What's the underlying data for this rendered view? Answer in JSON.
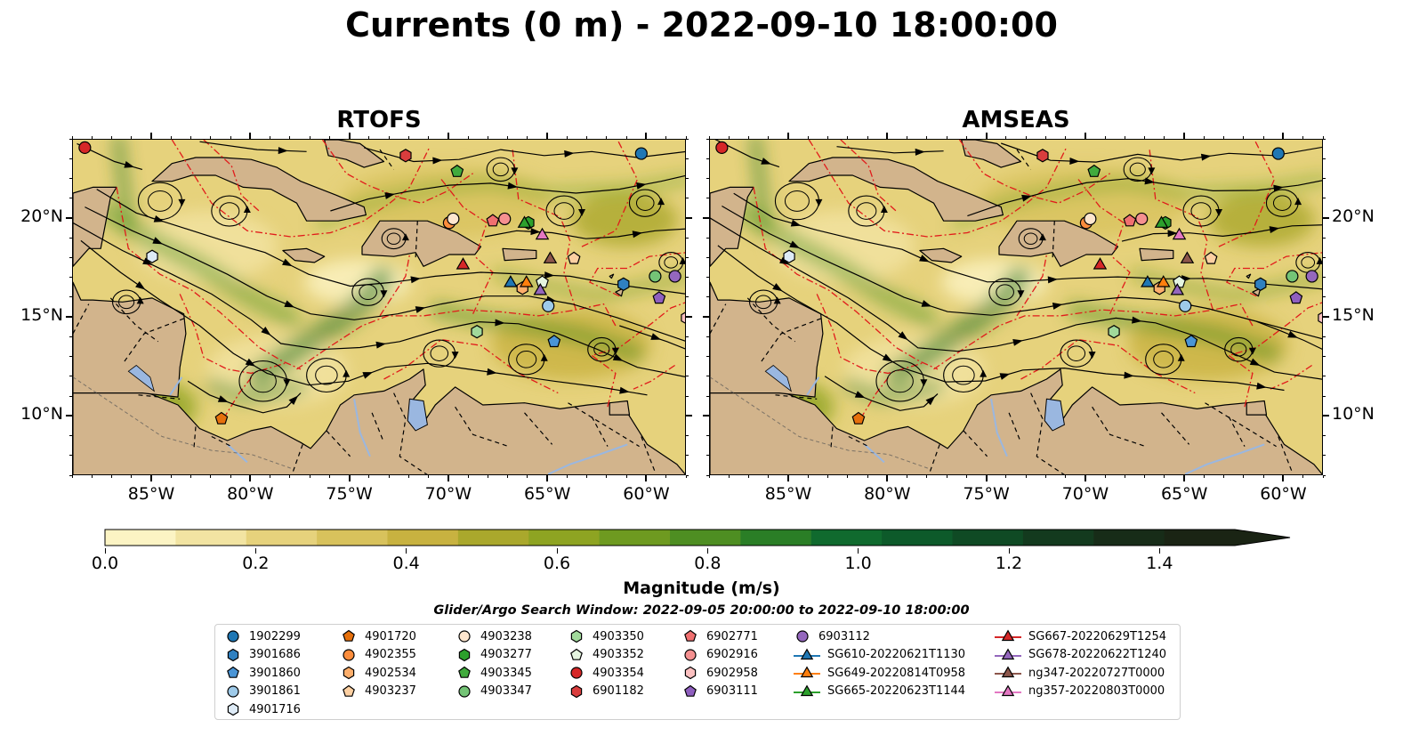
{
  "title": "Currents (0 m) - 2022-09-10 18:00:00",
  "panels": [
    {
      "title": "RTOFS"
    },
    {
      "title": "AMSEAS"
    }
  ],
  "map": {
    "lon_range": [
      -89,
      -58
    ],
    "lat_range": [
      7,
      24
    ],
    "lon_ticks": [
      {
        "lon": -85,
        "label": "85°W"
      },
      {
        "lon": -80,
        "label": "80°W"
      },
      {
        "lon": -75,
        "label": "75°W"
      },
      {
        "lon": -70,
        "label": "70°W"
      },
      {
        "lon": -65,
        "label": "65°W"
      },
      {
        "lon": -60,
        "label": "60°W"
      }
    ],
    "lat_ticks": [
      {
        "lat": 20,
        "label": "20°N"
      },
      {
        "lat": 15,
        "label": "15°N"
      },
      {
        "lat": 10,
        "label": "10°N"
      }
    ],
    "land_color": "#d2b48c",
    "lake_color": "#9ab7e0",
    "boundary_color": "#e11b1b"
  },
  "colorbar": {
    "label": "Magnitude (m/s)",
    "min": 0.0,
    "max": 1.5,
    "extend": "max",
    "ticks": [
      "0.0",
      "0.2",
      "0.4",
      "0.6",
      "0.8",
      "1.0",
      "1.2",
      "1.4"
    ],
    "tick_values": [
      0,
      0.2,
      0.4,
      0.6,
      0.8,
      1.0,
      1.2,
      1.4
    ],
    "colors": [
      "#fcf4c4",
      "#f2e4a2",
      "#e6d27c",
      "#d8c25c",
      "#c8b240",
      "#aaa82c",
      "#8ea422",
      "#6e9a20",
      "#4e8e22",
      "#2a7e26",
      "#106a2e",
      "#0d5a2a",
      "#0f4a24",
      "#133a1e",
      "#172c18",
      "#1a2414"
    ]
  },
  "search_window": "Glider/Argo Search Window: 2022-09-05 20:00:00 to 2022-09-10 18:00:00",
  "legend": {
    "columns": [
      [
        {
          "label": "1902299",
          "marker": "circle",
          "color": "#1f77b4"
        },
        {
          "label": "3901686",
          "marker": "hexagon",
          "color": "#2f80c0"
        },
        {
          "label": "3901860",
          "marker": "pentagon",
          "color": "#4a95d6"
        },
        {
          "label": "3901861",
          "marker": "circle",
          "color": "#9ecae9"
        },
        {
          "label": "4901716",
          "marker": "hexagon",
          "color": "#deebf7"
        }
      ],
      [
        {
          "label": "4901720",
          "marker": "pentagon",
          "color": "#e6700c"
        },
        {
          "label": "4902355",
          "marker": "circle",
          "color": "#fd8d3c"
        },
        {
          "label": "4902534",
          "marker": "hexagon",
          "color": "#fdae6b"
        },
        {
          "label": "4903237",
          "marker": "pentagon",
          "color": "#fdd0a2"
        }
      ],
      [
        {
          "label": "4903238",
          "marker": "circle",
          "color": "#fee6ce"
        },
        {
          "label": "4903277",
          "marker": "hexagon",
          "color": "#2ca02c"
        },
        {
          "label": "4903345",
          "marker": "pentagon",
          "color": "#41ab3d"
        },
        {
          "label": "4903347",
          "marker": "circle",
          "color": "#74c476"
        }
      ],
      [
        {
          "label": "4903350",
          "marker": "hexagon",
          "color": "#a1d99b"
        },
        {
          "label": "4903352",
          "marker": "pentagon",
          "color": "#e5f5e0"
        },
        {
          "label": "4903354",
          "marker": "circle",
          "color": "#d62728"
        },
        {
          "label": "6901182",
          "marker": "hexagon",
          "color": "#d93d3d"
        }
      ],
      [
        {
          "label": "6902771",
          "marker": "pentagon",
          "color": "#f07070"
        },
        {
          "label": "6902916",
          "marker": "circle",
          "color": "#f59090"
        },
        {
          "label": "6902958",
          "marker": "hexagon",
          "color": "#fbc0c0"
        },
        {
          "label": "6903111",
          "marker": "pentagon",
          "color": "#8f5fbf"
        }
      ],
      [
        {
          "label": "6903112",
          "marker": "circle",
          "color": "#9467bd"
        },
        {
          "label": "SG610-20220621T1130",
          "marker": "triangle-line",
          "color": "#1f77b4"
        },
        {
          "label": "SG649-20220814T0958",
          "marker": "triangle-line",
          "color": "#ff7f0e"
        },
        {
          "label": "SG665-20220623T1144",
          "marker": "triangle-line",
          "color": "#2ca02c"
        }
      ],
      [
        {
          "label": "SG667-20220629T1254",
          "marker": "triangle-line",
          "color": "#d62728"
        },
        {
          "label": "SG678-20220622T1240",
          "marker": "triangle-line",
          "color": "#9467bd"
        },
        {
          "label": "ng347-20220727T0000",
          "marker": "triangle-line",
          "color": "#8c564b"
        },
        {
          "label": "ng357-20220803T0000",
          "marker": "triangle-line",
          "color": "#e377c2"
        }
      ]
    ]
  },
  "stations": [
    {
      "id": "1902299",
      "lon": -60.3,
      "lat": 23.3,
      "marker": "circle",
      "color": "#1f77b4"
    },
    {
      "id": "3901686",
      "lon": -61.2,
      "lat": 16.7,
      "marker": "hexagon",
      "color": "#2f80c0"
    },
    {
      "id": "3901860",
      "lon": -64.7,
      "lat": 13.8,
      "marker": "pentagon",
      "color": "#4a95d6"
    },
    {
      "id": "3901861",
      "lon": -65.0,
      "lat": 15.6,
      "marker": "circle",
      "color": "#9ecae9"
    },
    {
      "id": "4901716",
      "lon": -85.0,
      "lat": 18.1,
      "marker": "hexagon",
      "color": "#deebf7"
    },
    {
      "id": "4901720",
      "lon": -81.5,
      "lat": 9.9,
      "marker": "pentagon",
      "color": "#e6700c"
    },
    {
      "id": "4902355",
      "lon": -70.0,
      "lat": 19.8,
      "marker": "circle",
      "color": "#fd8d3c"
    },
    {
      "id": "4902534",
      "lon": -66.3,
      "lat": 16.5,
      "marker": "hexagon",
      "color": "#fdae6b"
    },
    {
      "id": "4903237",
      "lon": -63.7,
      "lat": 18.0,
      "marker": "pentagon",
      "color": "#fdd0a2"
    },
    {
      "id": "4903238",
      "lon": -69.8,
      "lat": 20.0,
      "marker": "circle",
      "color": "#fee6ce"
    },
    {
      "id": "4903277",
      "lon": -66.0,
      "lat": 19.8,
      "marker": "hexagon",
      "color": "#2ca02c"
    },
    {
      "id": "4903345",
      "lon": -69.6,
      "lat": 22.4,
      "marker": "pentagon",
      "color": "#41ab3d"
    },
    {
      "id": "4903347",
      "lon": -59.6,
      "lat": 17.1,
      "marker": "circle",
      "color": "#74c476"
    },
    {
      "id": "4903350",
      "lon": -68.6,
      "lat": 14.3,
      "marker": "hexagon",
      "color": "#a1d99b"
    },
    {
      "id": "4903352",
      "lon": -65.3,
      "lat": 16.8,
      "marker": "pentagon",
      "color": "#e5f5e0"
    },
    {
      "id": "4903354",
      "lon": -88.4,
      "lat": 23.6,
      "marker": "circle",
      "color": "#d62728"
    },
    {
      "id": "6901182",
      "lon": -72.2,
      "lat": 23.2,
      "marker": "hexagon",
      "color": "#d93d3d"
    },
    {
      "id": "6902771",
      "lon": -67.8,
      "lat": 19.9,
      "marker": "pentagon",
      "color": "#f07070"
    },
    {
      "id": "6902916",
      "lon": -67.2,
      "lat": 20.0,
      "marker": "circle",
      "color": "#f59090"
    },
    {
      "id": "6902958",
      "lon": -58.0,
      "lat": 15.0,
      "marker": "hexagon",
      "color": "#fbc0c0"
    },
    {
      "id": "6903111",
      "lon": -59.4,
      "lat": 16.0,
      "marker": "pentagon",
      "color": "#8f5fbf"
    },
    {
      "id": "6903112",
      "lon": -58.6,
      "lat": 17.1,
      "marker": "circle",
      "color": "#9467bd"
    },
    {
      "id": "SG610-20220621T1130",
      "lon": -66.9,
      "lat": 16.8,
      "marker": "triangle",
      "color": "#1f77b4"
    },
    {
      "id": "SG649-20220814T0958",
      "lon": -66.1,
      "lat": 16.8,
      "marker": "triangle",
      "color": "#ff7f0e"
    },
    {
      "id": "SG665-20220623T1144",
      "lon": -66.2,
      "lat": 19.8,
      "marker": "triangle",
      "color": "#2ca02c"
    },
    {
      "id": "SG667-20220629T1254",
      "lon": -69.3,
      "lat": 17.7,
      "marker": "triangle",
      "color": "#d62728"
    },
    {
      "id": "SG678-20220622T1240",
      "lon": -65.4,
      "lat": 16.4,
      "marker": "triangle",
      "color": "#9467bd"
    },
    {
      "id": "ng347-20220727T0000",
      "lon": -64.9,
      "lat": 18.0,
      "marker": "triangle",
      "color": "#8c564b"
    },
    {
      "id": "ng357-20220803T0000",
      "lon": -65.3,
      "lat": 19.2,
      "marker": "triangle",
      "color": "#e377c2"
    }
  ]
}
